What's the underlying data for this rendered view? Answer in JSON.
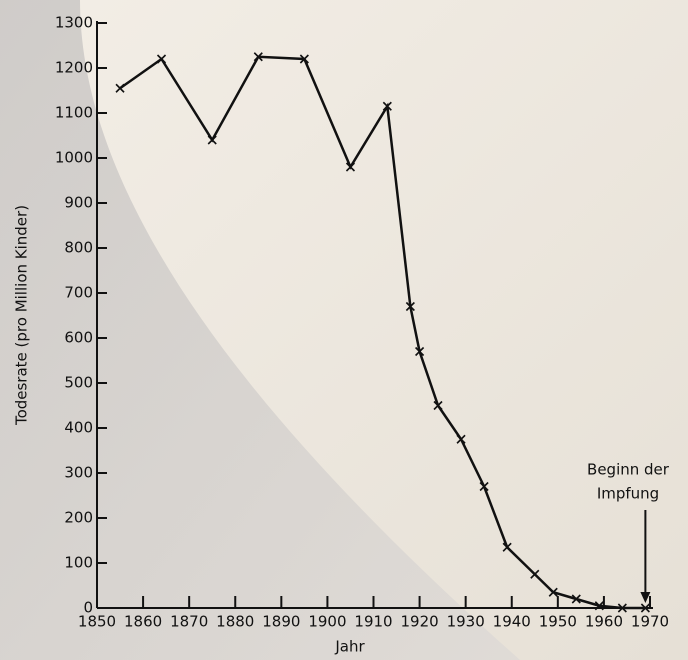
{
  "chart_data": {
    "type": "line",
    "x_label": "Jahr",
    "y_label": "Todesrate (pro Million Kinder)",
    "annotation": [
      "Beginn der",
      "Impfung"
    ],
    "series": [
      {
        "color": "#111111",
        "x": [
          1855,
          1864,
          1875,
          1885,
          1895,
          1905,
          1913,
          1918,
          1920,
          1924,
          1929,
          1934,
          1939,
          1945,
          1949,
          1954,
          1959,
          1964,
          1969
        ],
        "values": [
          1155,
          1220,
          1040,
          1225,
          1220,
          980,
          1115,
          670,
          570,
          450,
          375,
          270,
          135,
          75,
          35,
          20,
          5,
          0,
          0
        ]
      }
    ],
    "xlim": [
      1850,
      1970
    ],
    "xticks": [
      1850,
      1860,
      1870,
      1880,
      1890,
      1900,
      1910,
      1920,
      1930,
      1940,
      1950,
      1960,
      1970
    ],
    "ylim": [
      0,
      1300
    ],
    "yticks": [
      0,
      100,
      200,
      300,
      400,
      500,
      600,
      700,
      800,
      900,
      1000,
      1100,
      1200,
      1300
    ],
    "grid": false
  }
}
